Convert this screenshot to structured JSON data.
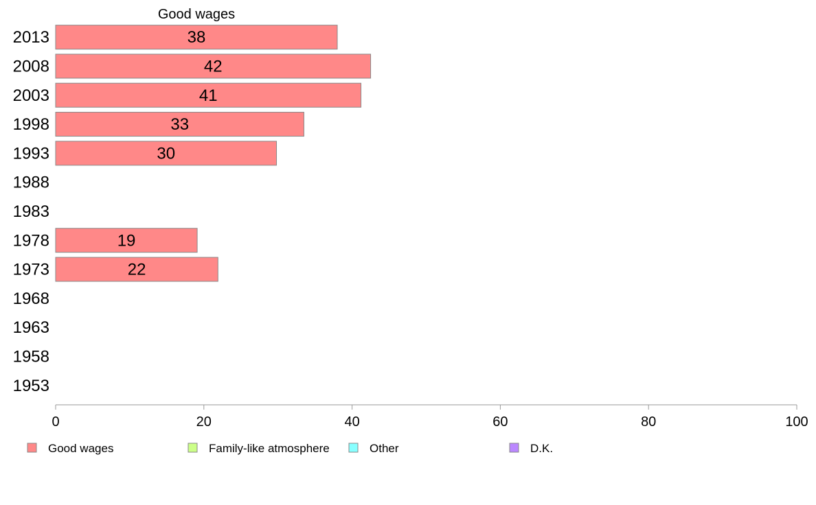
{
  "chart_data": {
    "type": "bar",
    "orientation": "horizontal",
    "title": "Good wages",
    "categories": [
      "2013",
      "2008",
      "2003",
      "1998",
      "1993",
      "1988",
      "1983",
      "1978",
      "1973",
      "1968",
      "1963",
      "1958",
      "1953"
    ],
    "series": [
      {
        "name": "Good wages",
        "color": "#ff8888",
        "values": [
          38,
          42.5,
          41.2,
          33.5,
          29.8,
          null,
          null,
          19.1,
          21.9,
          null,
          null,
          null,
          null
        ],
        "labels": [
          "38",
          "42",
          "41",
          "33",
          "30",
          "",
          "",
          "19",
          "22",
          "",
          "",
          "",
          ""
        ]
      }
    ],
    "xlim": [
      0,
      100
    ],
    "xticks": [
      0,
      20,
      40,
      60,
      80,
      100
    ],
    "legend": {
      "placement": "bottom",
      "entries": [
        {
          "label": "Good wages",
          "color": "#ff8888"
        },
        {
          "label": "Family-like atmosphere",
          "color": "#ccff88"
        },
        {
          "label": "Other",
          "color": "#88ffff"
        },
        {
          "label": "D.K.",
          "color": "#bb88ff"
        }
      ]
    }
  }
}
